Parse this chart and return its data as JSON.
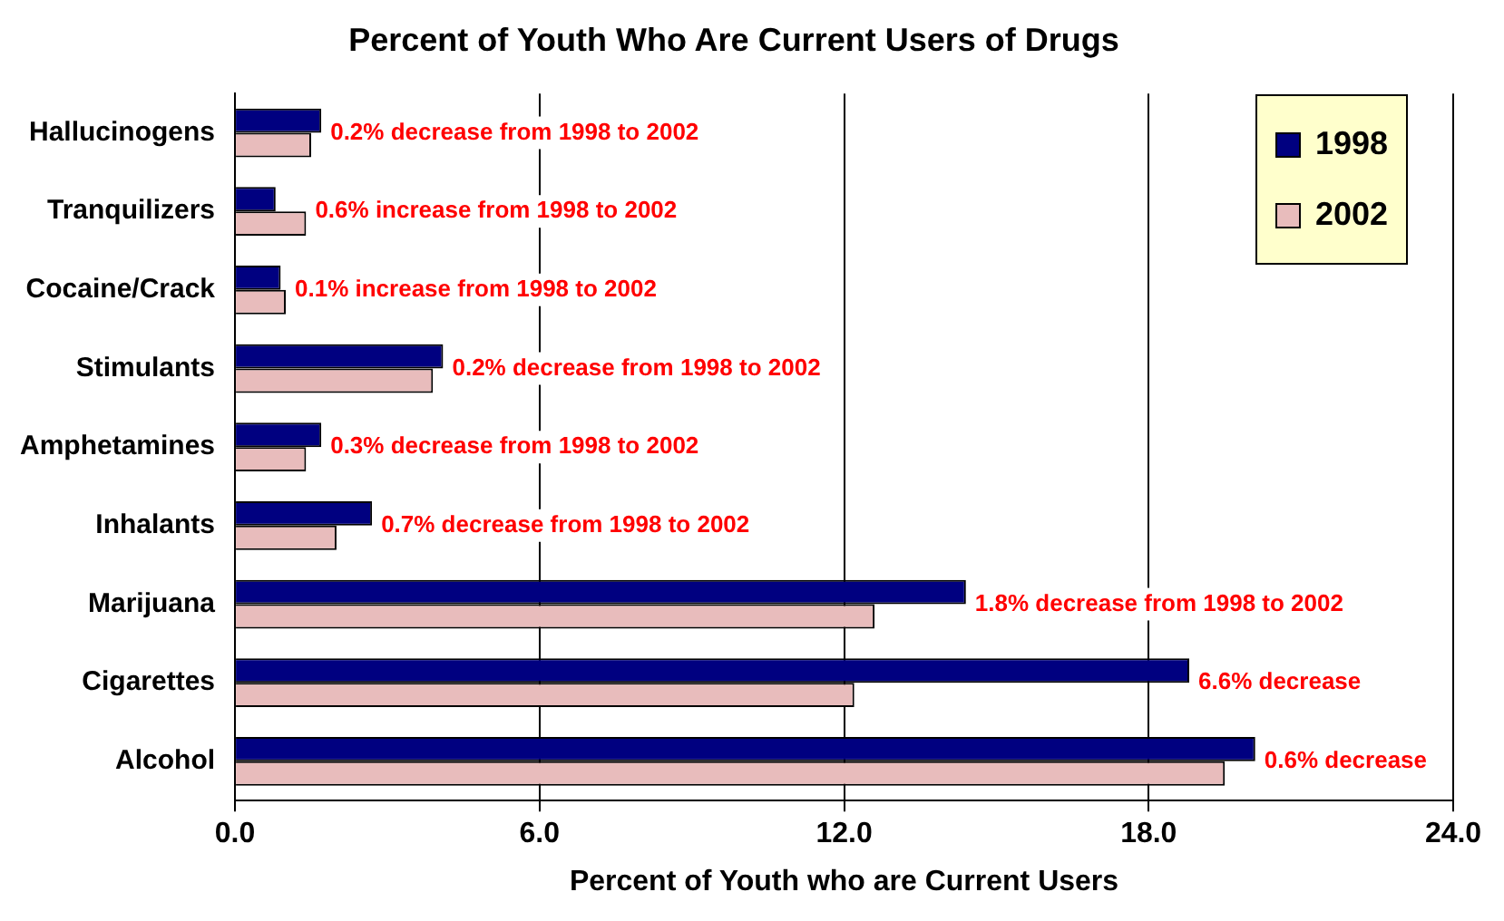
{
  "chart_data": {
    "type": "bar",
    "orientation": "horizontal",
    "title": "Percent of Youth Who Are Current Users of Drugs",
    "xlabel": "Percent of Youth who are Current Users",
    "categories": [
      "Hallucinogens",
      "Tranquilizers",
      "Cocaine/Crack",
      "Stimulants",
      "Amphetamines",
      "Inhalants",
      "Marijuana",
      "Cigarettes",
      "Alcohol"
    ],
    "series": [
      {
        "name": "1998",
        "color": "#000080",
        "values": [
          1.7,
          0.8,
          0.9,
          4.1,
          1.7,
          2.7,
          14.4,
          18.8,
          20.1
        ]
      },
      {
        "name": "2002",
        "color": "#e8bcbc",
        "values": [
          1.5,
          1.4,
          1.0,
          3.9,
          1.4,
          2.0,
          12.6,
          12.2,
          19.5
        ]
      }
    ],
    "xlim": [
      0,
      24
    ],
    "xticks": [
      {
        "value": 0,
        "label": "0.0"
      },
      {
        "value": 6,
        "label": "6.0"
      },
      {
        "value": 12,
        "label": "12.0"
      },
      {
        "value": 18,
        "label": "18.0"
      },
      {
        "value": 24,
        "label": "24.0"
      }
    ],
    "grid": "x",
    "legend": "top right",
    "annotations": [
      {
        "text": "0.2% decrease from 1998 to 2002",
        "x": 1.7,
        "y": "Hallucinogens"
      },
      {
        "text": "0.6% increase from 1998 to 2002",
        "x": 1.4,
        "y": "Tranquilizers"
      },
      {
        "text": "0.1% increase from 1998 to 2002",
        "x": 1.0,
        "y": "Cocaine/Crack"
      },
      {
        "text": "0.2% decrease from 1998 to 2002",
        "x": 4.1,
        "y": "Stimulants"
      },
      {
        "text": "0.3% decrease from 1998 to 2002",
        "x": 1.7,
        "y": "Amphetamines"
      },
      {
        "text": "0.7% decrease from 1998 to 2002",
        "x": 2.7,
        "y": "Inhalants"
      },
      {
        "text": "1.8% decrease from 1998 to 2002",
        "x": 14.4,
        "y": "Marijuana"
      },
      {
        "text": "6.6% decrease",
        "x": 18.8,
        "y": "Cigarettes"
      },
      {
        "text": "0.6% decrease",
        "x": 20.1,
        "y": "Alcohol"
      }
    ]
  }
}
